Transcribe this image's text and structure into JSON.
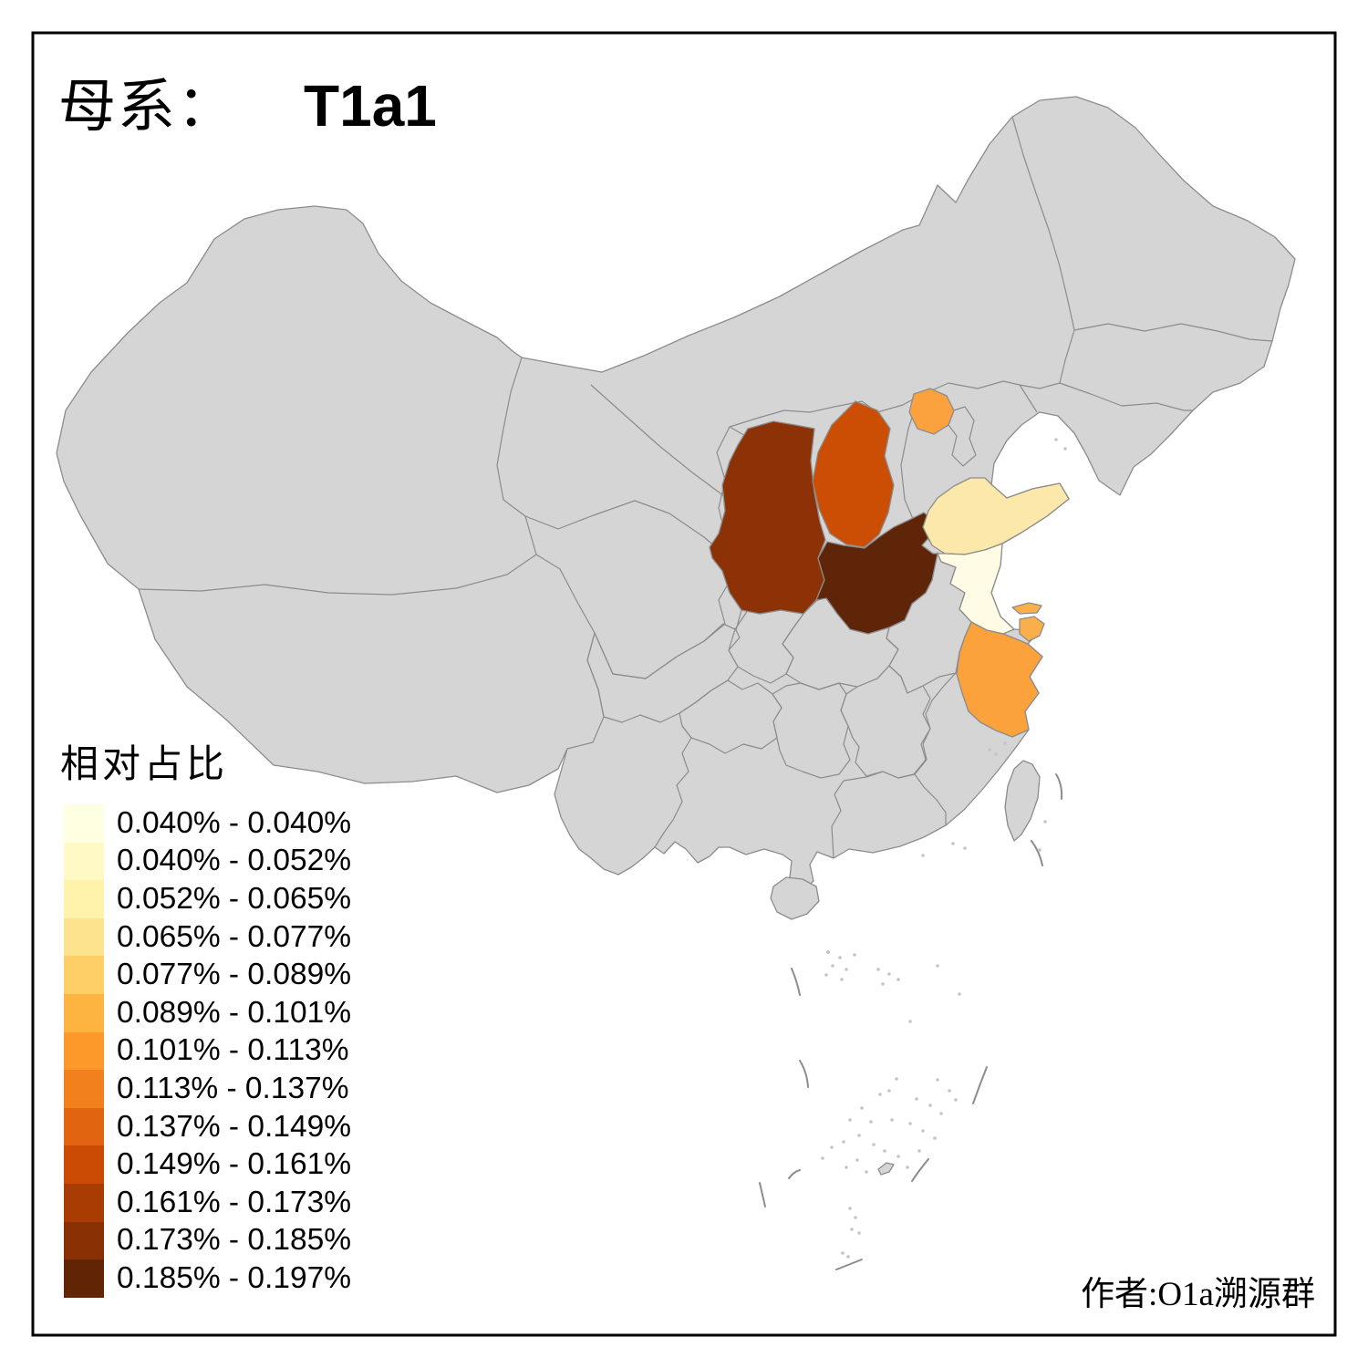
{
  "title": {
    "label_prefix": "母系：",
    "haplogroup": "T1a1"
  },
  "attribution": "作者:O1a溯源群",
  "legend": {
    "title": "相对占比",
    "classes": [
      {
        "label": "0.040% - 0.040%",
        "color": "#FFFFE2"
      },
      {
        "label": "0.040% - 0.052%",
        "color": "#FFF9C5"
      },
      {
        "label": "0.052% - 0.065%",
        "color": "#FFF3AC"
      },
      {
        "label": "0.065% - 0.077%",
        "color": "#FEE38E"
      },
      {
        "label": "0.077% - 0.089%",
        "color": "#FECF66"
      },
      {
        "label": "0.089% - 0.101%",
        "color": "#FDB440"
      },
      {
        "label": "0.101% - 0.113%",
        "color": "#FD982A"
      },
      {
        "label": "0.113% - 0.137%",
        "color": "#F2801C"
      },
      {
        "label": "0.137% - 0.149%",
        "color": "#E16410"
      },
      {
        "label": "0.149% - 0.161%",
        "color": "#CB4A04"
      },
      {
        "label": "0.161% - 0.173%",
        "color": "#A93C03"
      },
      {
        "label": "0.173% - 0.185%",
        "color": "#8A3005"
      },
      {
        "label": "0.185% - 0.197%",
        "color": "#612506"
      }
    ]
  },
  "map": {
    "base_fill": "#D5D5D6",
    "border_color": "#8C8C8C",
    "frame_color": "#000000",
    "sea_fill": "#FFFFFF",
    "regions": [
      {
        "id": "beijing",
        "name": "北京",
        "fill": "#FBA23E",
        "class": "0.101% - 0.113%"
      },
      {
        "id": "shanxi",
        "name": "山西",
        "fill": "#CC4D04",
        "class": "0.149% - 0.161%"
      },
      {
        "id": "shaanxi",
        "name": "陕西",
        "fill": "#8D3106",
        "class": "0.173% - 0.185%"
      },
      {
        "id": "henan",
        "name": "河南",
        "fill": "#5E2509",
        "class": "0.185% - 0.197%"
      },
      {
        "id": "shandong",
        "name": "山东",
        "fill": "#FBE8AA",
        "class": "0.052% - 0.065%"
      },
      {
        "id": "jiangsu",
        "name": "江苏",
        "fill": "#FFFBE5",
        "class": "0.040% - 0.040%"
      },
      {
        "id": "shanghai",
        "name": "上海",
        "fill": "#FAAF4B",
        "class": "0.089% - 0.101%"
      },
      {
        "id": "zhejiang",
        "name": "浙江",
        "fill": "#FBA23C",
        "class": "0.101% - 0.113%"
      }
    ]
  }
}
